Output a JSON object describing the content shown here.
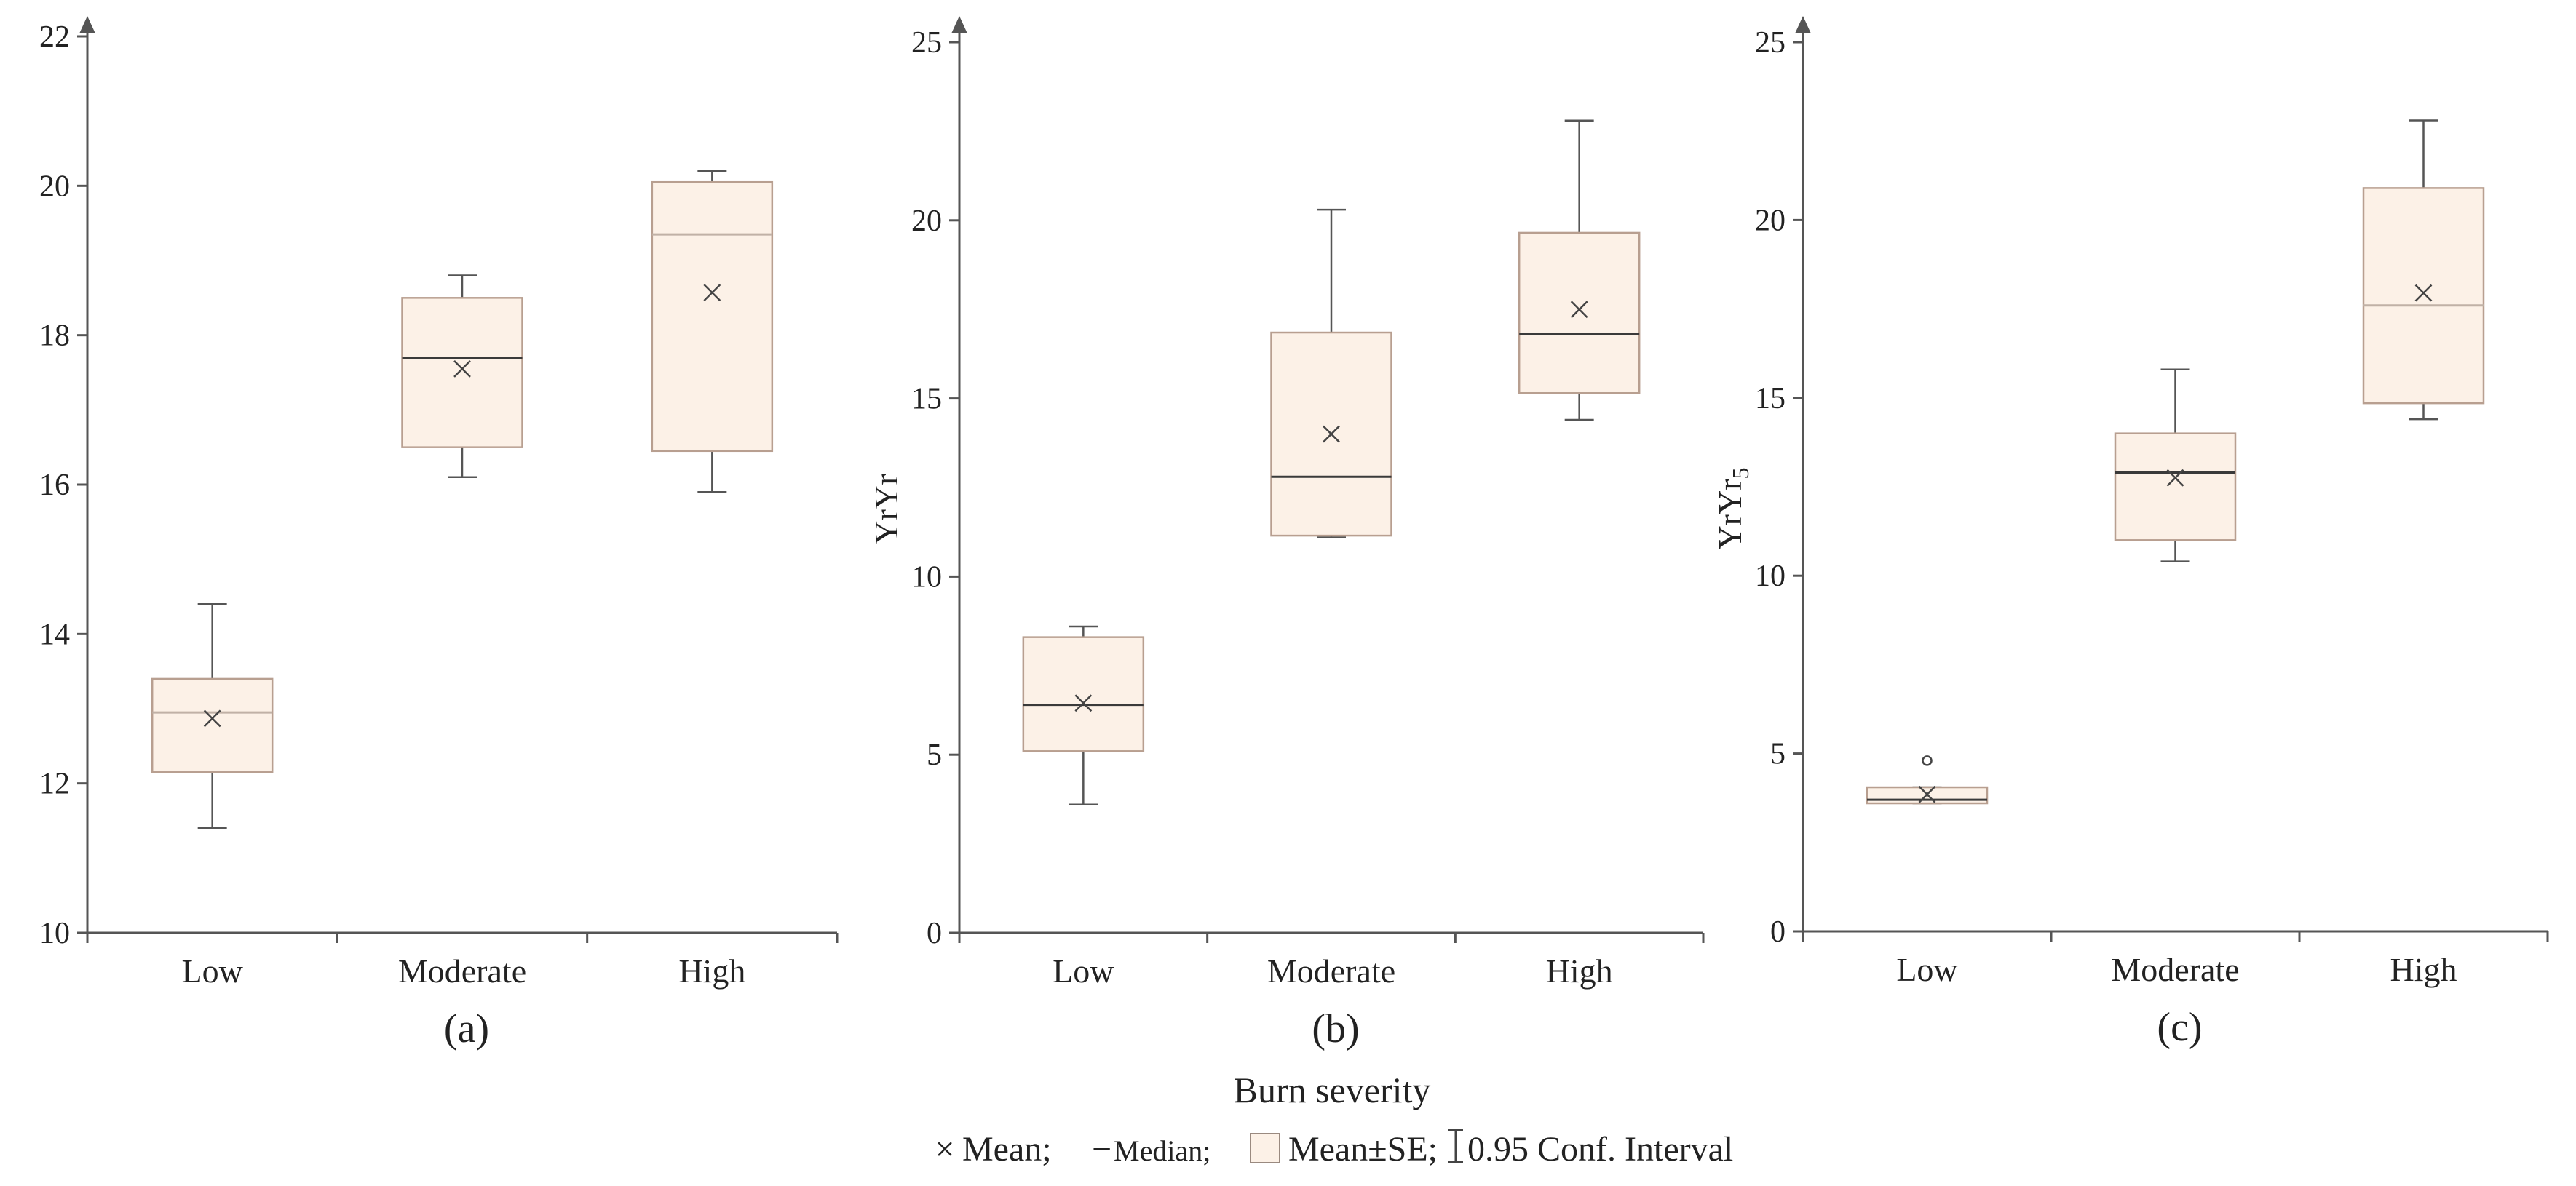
{
  "colors": {
    "axis": "#555555",
    "box_fill": "#fcf1e7",
    "box_stroke": "#b89f90",
    "median_dark": "#3a3a3a",
    "median_light": "#c0b1a6",
    "whisker": "#555555",
    "mean_marker": "#444444"
  },
  "figure": {
    "xtitle": "Burn severity",
    "legend": {
      "mean_symbol": "×",
      "mean_label": "Mean;",
      "median_symbol": "−",
      "median_label": "Median;",
      "box_label": "Mean±SE;",
      "ci_label": "0.95 Conf. Interval"
    }
  },
  "chart_data": [
    {
      "type": "box",
      "panel_label": "(a)",
      "ylabel": "",
      "categories": [
        "Low",
        "Moderate",
        "High"
      ],
      "ylim": [
        10,
        22
      ],
      "yticks": [
        10,
        12,
        14,
        16,
        18,
        20,
        22
      ],
      "boxes": [
        {
          "category": "Low",
          "whisker_low": 11.4,
          "q1": 12.15,
          "median": 12.95,
          "q3": 13.4,
          "whisker_high": 14.4,
          "mean": 12.87,
          "median_style": "light",
          "outliers": []
        },
        {
          "category": "Moderate",
          "whisker_low": 16.1,
          "q1": 16.5,
          "median": 17.7,
          "q3": 18.5,
          "whisker_high": 18.8,
          "mean": 17.55,
          "median_style": "dark",
          "outliers": []
        },
        {
          "category": "High",
          "whisker_low": 15.9,
          "q1": 16.45,
          "median": 19.35,
          "q3": 20.05,
          "whisker_high": 20.2,
          "mean": 18.57,
          "median_style": "light",
          "outliers": []
        }
      ]
    },
    {
      "type": "box",
      "panel_label": "(b)",
      "ylabel": "YrYr",
      "categories": [
        "Low",
        "Moderate",
        "High"
      ],
      "ylim": [
        0,
        25
      ],
      "yticks": [
        0,
        5,
        10,
        15,
        20,
        25
      ],
      "boxes": [
        {
          "category": "Low",
          "whisker_low": 3.6,
          "q1": 5.1,
          "median": 6.4,
          "q3": 8.3,
          "whisker_high": 8.6,
          "mean": 6.45,
          "median_style": "dark",
          "outliers": []
        },
        {
          "category": "Moderate",
          "whisker_low": 11.1,
          "q1": 11.15,
          "median": 12.8,
          "q3": 16.85,
          "whisker_high": 20.3,
          "mean": 14.0,
          "median_style": "dark",
          "outliers": []
        },
        {
          "category": "High",
          "whisker_low": 14.4,
          "q1": 15.15,
          "median": 16.8,
          "q3": 19.65,
          "whisker_high": 22.8,
          "mean": 17.5,
          "median_style": "dark",
          "outliers": []
        }
      ]
    },
    {
      "type": "box",
      "panel_label": "(c)",
      "ylabel": "YrYr",
      "ylabel_sub": "5",
      "categories": [
        "Low",
        "Moderate",
        "High"
      ],
      "ylim": [
        0,
        25
      ],
      "yticks": [
        0,
        5,
        10,
        15,
        20,
        25
      ],
      "boxes": [
        {
          "category": "Low",
          "whisker_low": 3.6,
          "q1": 3.6,
          "median": 3.7,
          "q3": 4.05,
          "whisker_high": 4.05,
          "mean": 3.85,
          "median_style": "dark",
          "outliers": [
            4.8
          ]
        },
        {
          "category": "Moderate",
          "whisker_low": 10.4,
          "q1": 11.0,
          "median": 12.9,
          "q3": 14.0,
          "whisker_high": 15.8,
          "mean": 12.75,
          "median_style": "dark",
          "outliers": []
        },
        {
          "category": "High",
          "whisker_low": 14.4,
          "q1": 14.85,
          "median": 17.6,
          "q3": 20.9,
          "whisker_high": 22.8,
          "mean": 17.95,
          "median_style": "light",
          "outliers": []
        }
      ]
    }
  ]
}
